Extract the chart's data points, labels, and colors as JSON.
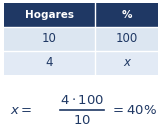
{
  "header_labels": [
    "Hogares",
    "%"
  ],
  "row1": [
    "10",
    "100"
  ],
  "row2": [
    "4",
    "x"
  ],
  "header_bg": "#1f3864",
  "header_text_color": "#ffffff",
  "row1_bg": "#dce6f1",
  "row2_bg": "#e2eaf5",
  "cell_text_color": "#1f3864",
  "formula_color": "#1f3864",
  "bg_color": "#ffffff",
  "fig_width": 1.62,
  "fig_height": 1.38,
  "dpi": 100
}
